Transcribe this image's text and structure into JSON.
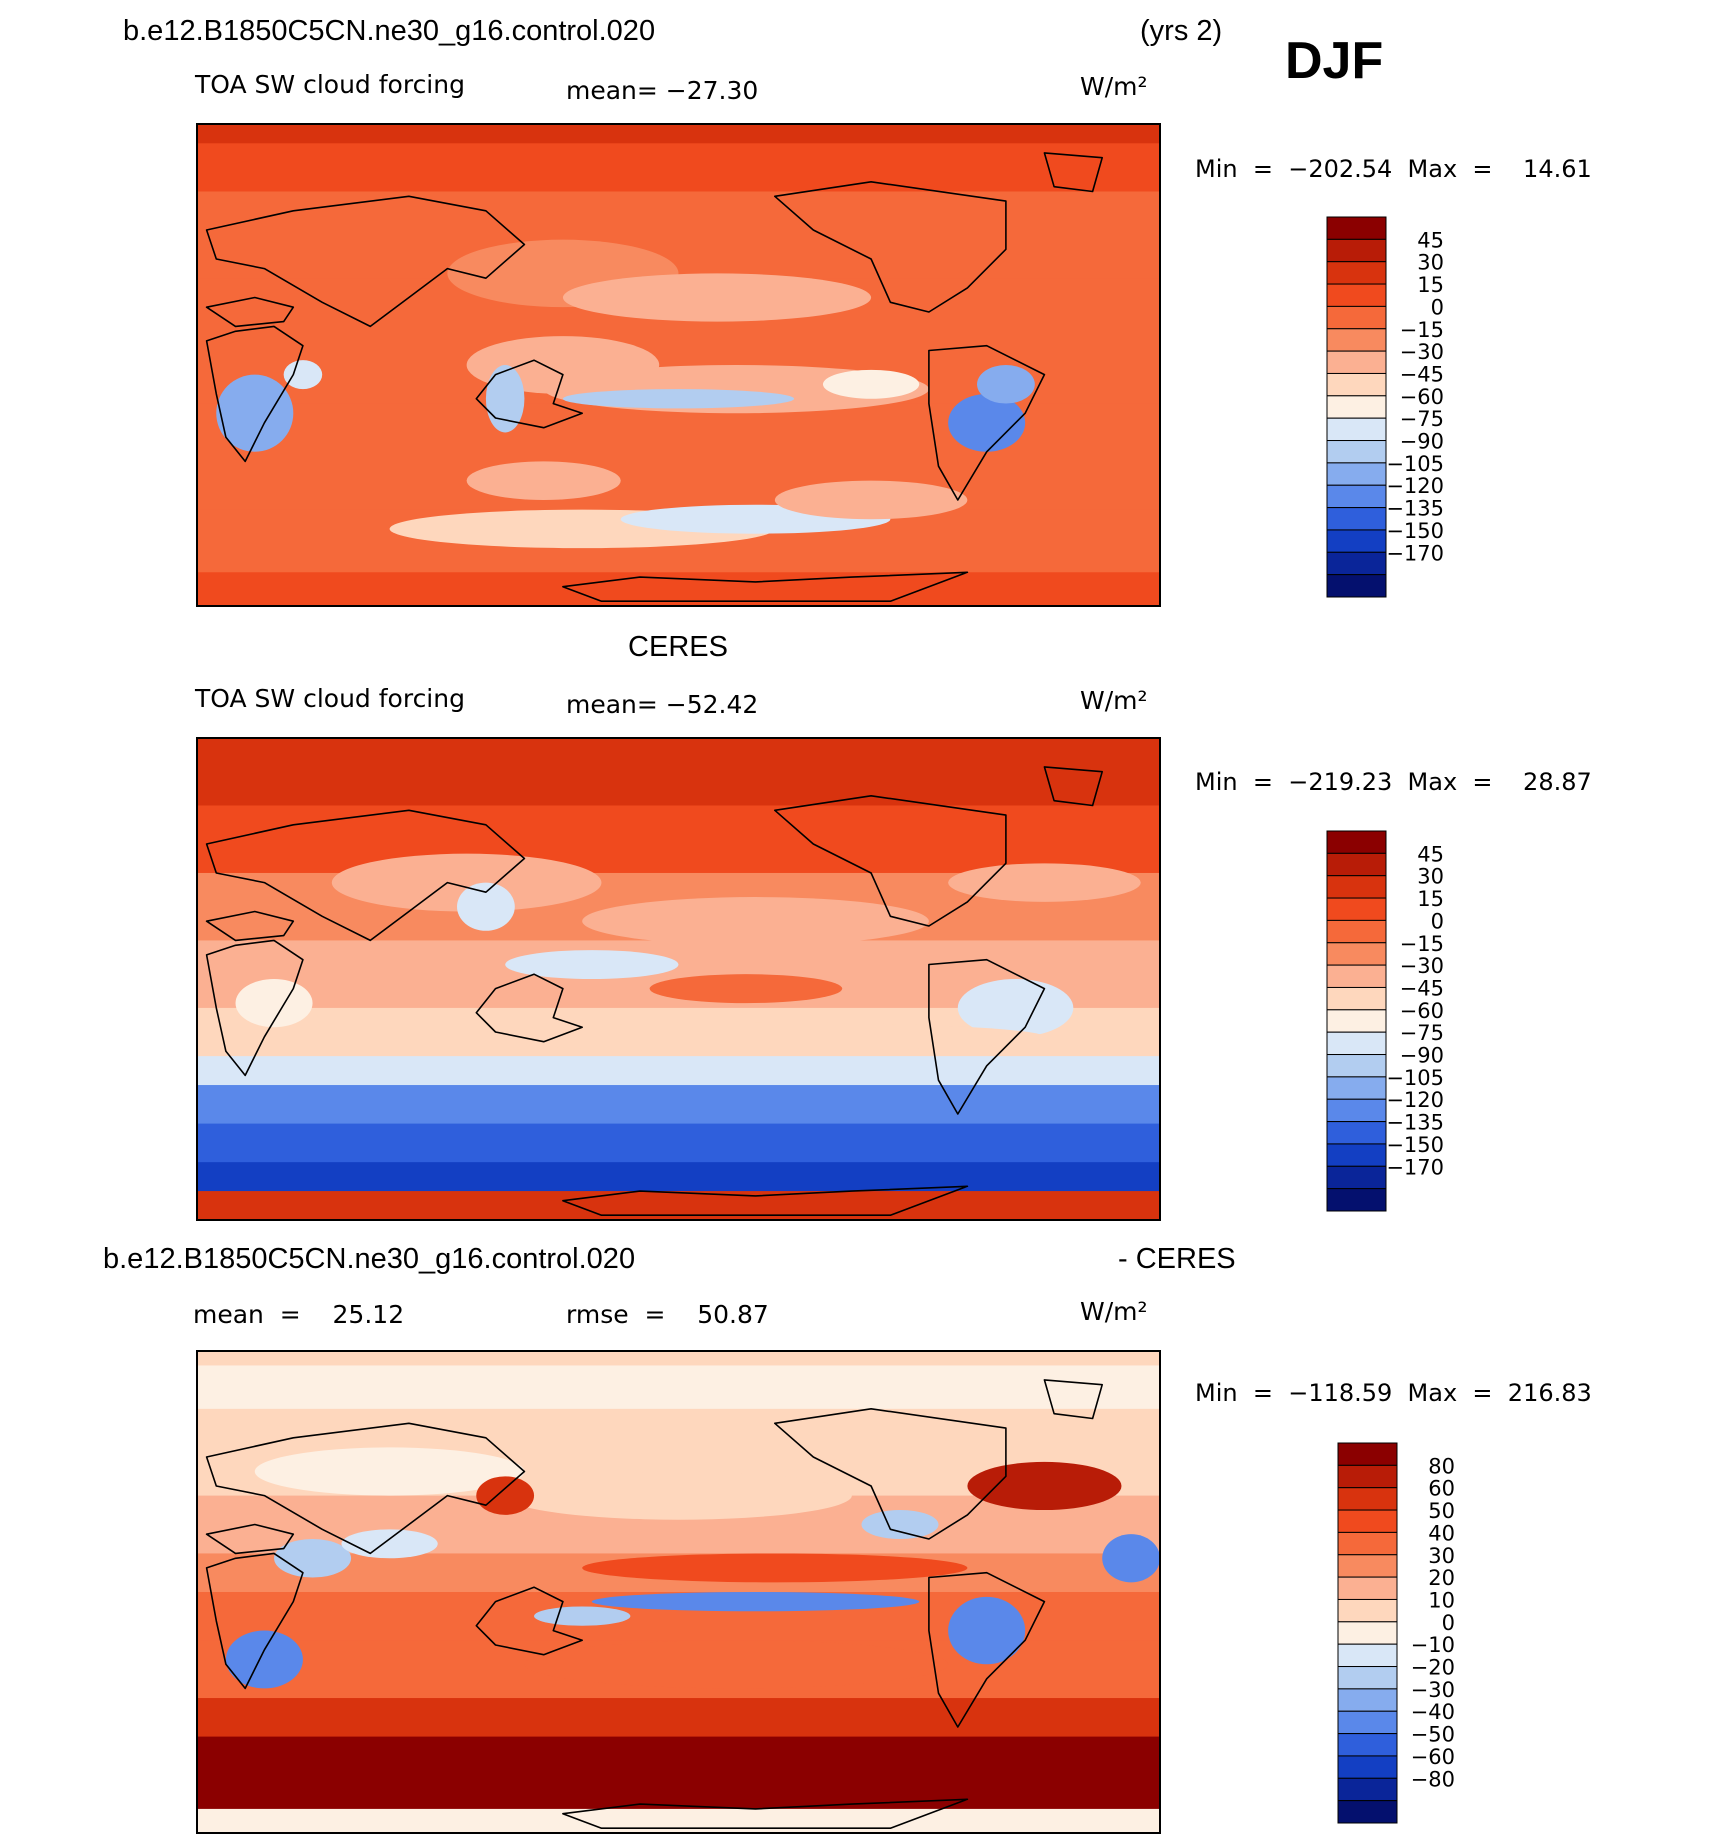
{
  "header": {
    "case_name": "b.e12.B1850C5CN.ne30_g16.control.020",
    "years": "(yrs 2)",
    "season": "DJF"
  },
  "chart_data": [
    {
      "type": "heatmap",
      "name": "model",
      "subtitle": "",
      "left_label": "TOA SW cloud forcing",
      "mean_text": "mean=  −27.30",
      "units": "W/m²",
      "minmax_text": "Min  =  −202.54  Max  =    14.61",
      "min": -202.54,
      "max": 14.61,
      "mean": -27.3,
      "levels": [
        "45",
        "30",
        "15",
        "0",
        "−15",
        "−30",
        "−45",
        "−60",
        "−75",
        "−90",
        "−105",
        "−120",
        "−135",
        "−150",
        "−170"
      ],
      "colors": [
        "#8b0000",
        "#b81c07",
        "#d8330e",
        "#f04a1e",
        "#f5693a",
        "#f88a5f",
        "#fbb092",
        "#fed7bd",
        "#fdf0e3",
        "#d9e7f7",
        "#b2cdf0",
        "#86acee",
        "#5a88ea",
        "#2f5fdc",
        "#133fc3",
        "#0a2599",
        "#04106e"
      ],
      "features": [
        {
          "cx": 38,
          "cy": 50,
          "rx": 10,
          "ry": 6,
          "v": -45
        },
        {
          "cx": 56,
          "cy": 55,
          "rx": 20,
          "ry": 5,
          "v": -45
        },
        {
          "cx": 32,
          "cy": 57,
          "rx": 2,
          "ry": 7,
          "v": -105
        },
        {
          "cx": 50,
          "cy": 57,
          "rx": 12,
          "ry": 2,
          "v": -105
        },
        {
          "cx": 70,
          "cy": 54,
          "rx": 5,
          "ry": 3,
          "v": -75
        },
        {
          "cx": 38,
          "cy": 31,
          "rx": 12,
          "ry": 7,
          "v": -30
        },
        {
          "cx": 54,
          "cy": 36,
          "rx": 16,
          "ry": 5,
          "v": -45
        },
        {
          "cx": 82,
          "cy": 62,
          "rx": 4,
          "ry": 6,
          "v": -135
        },
        {
          "cx": 84,
          "cy": 54,
          "rx": 3,
          "ry": 4,
          "v": -120
        },
        {
          "cx": 6,
          "cy": 60,
          "rx": 4,
          "ry": 8,
          "v": -120
        },
        {
          "cx": 11,
          "cy": 52,
          "rx": 2,
          "ry": 3,
          "v": -90
        },
        {
          "cx": 40,
          "cy": 84,
          "rx": 20,
          "ry": 4,
          "v": -60
        },
        {
          "cx": 58,
          "cy": 82,
          "rx": 14,
          "ry": 3,
          "v": -90
        },
        {
          "cx": 36,
          "cy": 74,
          "rx": 8,
          "ry": 4,
          "v": -45
        },
        {
          "cx": 70,
          "cy": 78,
          "rx": 10,
          "ry": 4,
          "v": -45
        }
      ]
    },
    {
      "type": "heatmap",
      "name": "obs",
      "subtitle": "CERES",
      "left_label": "TOA SW cloud forcing",
      "mean_text": "mean=  −52.42",
      "units": "W/m²",
      "minmax_text": "Min  =  −219.23  Max  =    28.87",
      "min": -219.23,
      "max": 28.87,
      "mean": -52.42,
      "levels": [
        "45",
        "30",
        "15",
        "0",
        "−15",
        "−30",
        "−45",
        "−60",
        "−75",
        "−90",
        "−105",
        "−120",
        "−135",
        "−150",
        "−170"
      ],
      "colors": [
        "#8b0000",
        "#b81c07",
        "#d8330e",
        "#f04a1e",
        "#f5693a",
        "#f88a5f",
        "#fbb092",
        "#fed7bd",
        "#fdf0e3",
        "#d9e7f7",
        "#b2cdf0",
        "#86acee",
        "#5a88ea",
        "#2f5fdc",
        "#133fc3",
        "#0a2599",
        "#04106e"
      ],
      "features": [
        {
          "cx": 28,
          "cy": 30,
          "rx": 14,
          "ry": 6,
          "v": -45
        },
        {
          "cx": 58,
          "cy": 38,
          "rx": 18,
          "ry": 5,
          "v": -45
        },
        {
          "cx": 57,
          "cy": 52,
          "rx": 10,
          "ry": 3,
          "v": -15
        },
        {
          "cx": 41,
          "cy": 47,
          "rx": 9,
          "ry": 3,
          "v": -90
        },
        {
          "cx": 30,
          "cy": 35,
          "rx": 3,
          "ry": 5,
          "v": -90
        },
        {
          "cx": 85,
          "cy": 56,
          "rx": 6,
          "ry": 6,
          "v": -90
        },
        {
          "cx": 8,
          "cy": 55,
          "rx": 4,
          "ry": 5,
          "v": -75
        },
        {
          "cx": 58,
          "cy": 62,
          "rx": 30,
          "ry": 3,
          "v": -60
        },
        {
          "cx": 88,
          "cy": 30,
          "rx": 10,
          "ry": 4,
          "v": -45
        }
      ]
    },
    {
      "type": "heatmap",
      "name": "difference",
      "subtitle": "b.e12.B1850C5CN.ne30_g16.control.020",
      "subtitle_right": "- CERES",
      "left_label": "mean  =    25.12",
      "mean_text": "rmse  =    50.87",
      "units": "W/m²",
      "minmax_text": "Min  =  −118.59  Max  =  216.83",
      "min": -118.59,
      "max": 216.83,
      "mean": 25.12,
      "rmse": 50.87,
      "levels": [
        "80",
        "60",
        "50",
        "40",
        "30",
        "20",
        "10",
        "0",
        "−10",
        "−20",
        "−30",
        "−40",
        "−50",
        "−60",
        "−80"
      ],
      "colors": [
        "#8b0000",
        "#b81c07",
        "#d8330e",
        "#f04a1e",
        "#f5693a",
        "#f88a5f",
        "#fbb092",
        "#fed7bd",
        "#fdf0e3",
        "#d9e7f7",
        "#b2cdf0",
        "#86acee",
        "#5a88ea",
        "#2f5fdc",
        "#133fc3",
        "#0a2599",
        "#04106e"
      ],
      "features": [
        {
          "cx": 58,
          "cy": 52,
          "rx": 17,
          "ry": 2,
          "v": -50
        },
        {
          "cx": 82,
          "cy": 58,
          "rx": 4,
          "ry": 7,
          "v": -50
        },
        {
          "cx": 7,
          "cy": 64,
          "rx": 4,
          "ry": 6,
          "v": -50
        },
        {
          "cx": 97,
          "cy": 43,
          "rx": 3,
          "ry": 5,
          "v": -50
        },
        {
          "cx": 12,
          "cy": 43,
          "rx": 4,
          "ry": 4,
          "v": -30
        },
        {
          "cx": 20,
          "cy": 40,
          "rx": 5,
          "ry": 3,
          "v": -20
        },
        {
          "cx": 40,
          "cy": 55,
          "rx": 5,
          "ry": 2,
          "v": -30
        },
        {
          "cx": 73,
          "cy": 36,
          "rx": 4,
          "ry": 3,
          "v": -30
        },
        {
          "cx": 50,
          "cy": 30,
          "rx": 18,
          "ry": 5,
          "v": 0
        },
        {
          "cx": 20,
          "cy": 25,
          "rx": 14,
          "ry": 5,
          "v": -10
        },
        {
          "cx": 60,
          "cy": 45,
          "rx": 20,
          "ry": 3,
          "v": 40
        },
        {
          "cx": 56,
          "cy": 65,
          "rx": 22,
          "ry": 5,
          "v": 30
        },
        {
          "cx": 88,
          "cy": 28,
          "rx": 8,
          "ry": 5,
          "v": 60
        },
        {
          "cx": 32,
          "cy": 30,
          "rx": 3,
          "ry": 4,
          "v": 50
        }
      ]
    }
  ]
}
